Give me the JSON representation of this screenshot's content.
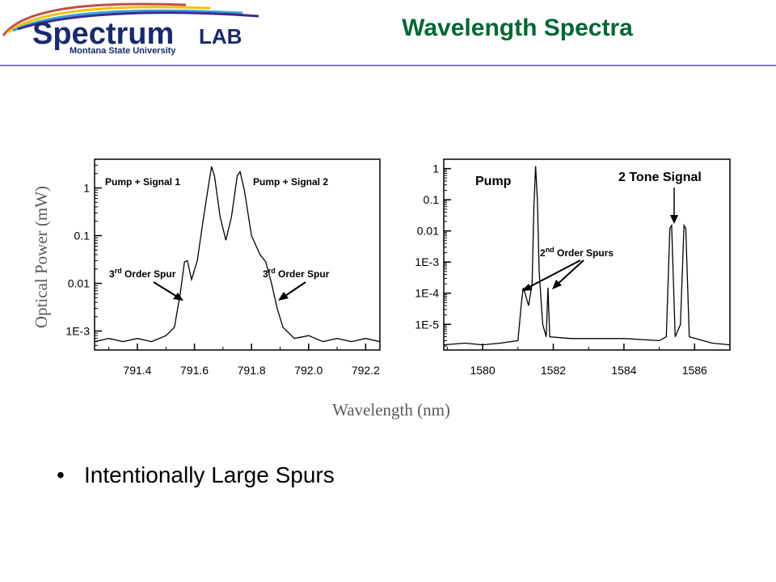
{
  "slide": {
    "title": "Wavelength Spectra",
    "bullets": [
      "Intentionally Large Spurs"
    ]
  },
  "logo": {
    "name_part1": "Spectrum",
    "name_part2": "LAB",
    "subtitle": "Montana State University",
    "colors": {
      "text": "#1a2a6c",
      "swoosh": [
        "#c0504d",
        "#f2c200",
        "#3aa0d8",
        "#3d2b8f"
      ]
    }
  },
  "colors": {
    "title": "#006633",
    "rule": "#8c7ab8",
    "trace": "#000000"
  },
  "shared_axes": {
    "ylabel": "Optical Power (mW)",
    "xlabel": "Wavelength (nm)"
  },
  "chart_data": [
    {
      "type": "line",
      "y_scale": "log",
      "xlim": [
        791.25,
        792.25
      ],
      "ylim": [
        0.0004,
        4
      ],
      "x_ticks": [
        791.4,
        791.6,
        791.8,
        792.0,
        792.2
      ],
      "x_tick_labels": [
        "791.4",
        "791.6",
        "791.8",
        "792.0",
        "792.2"
      ],
      "y_ticks": [
        0.001,
        0.01,
        0.1,
        1
      ],
      "y_tick_labels": [
        "1E-3",
        "0.01",
        "0.1",
        "1"
      ],
      "series": [
        {
          "points": [
            [
              791.25,
              0.0006
            ],
            [
              791.3,
              0.0007
            ],
            [
              791.35,
              0.0006
            ],
            [
              791.4,
              0.0007
            ],
            [
              791.45,
              0.0006
            ],
            [
              791.5,
              0.0008
            ],
            [
              791.53,
              0.0012
            ],
            [
              791.55,
              0.006
            ],
            [
              791.565,
              0.028
            ],
            [
              791.575,
              0.03
            ],
            [
              791.59,
              0.012
            ],
            [
              791.61,
              0.03
            ],
            [
              791.63,
              0.2
            ],
            [
              791.65,
              1.2
            ],
            [
              791.66,
              2.8
            ],
            [
              791.67,
              1.8
            ],
            [
              791.69,
              0.25
            ],
            [
              791.71,
              0.08
            ],
            [
              791.73,
              0.25
            ],
            [
              791.75,
              1.8
            ],
            [
              791.76,
              2.2
            ],
            [
              791.775,
              0.9
            ],
            [
              791.8,
              0.1
            ],
            [
              791.83,
              0.04
            ],
            [
              791.85,
              0.028
            ],
            [
              791.87,
              0.01
            ],
            [
              791.89,
              0.003
            ],
            [
              791.91,
              0.0012
            ],
            [
              791.95,
              0.0007
            ],
            [
              792.0,
              0.0008
            ],
            [
              792.05,
              0.0006
            ],
            [
              792.1,
              0.0007
            ],
            [
              792.15,
              0.0006
            ],
            [
              792.2,
              0.0007
            ],
            [
              792.25,
              0.0006
            ]
          ]
        }
      ],
      "annotations": [
        {
          "text": "Pump + Signal 1"
        },
        {
          "text": "Pump + Signal 2"
        },
        {
          "text_main": "3",
          "text_sup": "rd",
          "text_rest": " Order Spur"
        },
        {
          "text_main": "3",
          "text_sup": "rd",
          "text_rest": " Order Spur"
        }
      ]
    },
    {
      "type": "line",
      "y_scale": "log",
      "xlim": [
        1578.9,
        1587.0
      ],
      "ylim": [
        1.5e-06,
        2
      ],
      "x_ticks": [
        1580,
        1582,
        1584,
        1586
      ],
      "x_tick_labels": [
        "1580",
        "1582",
        "1584",
        "1586"
      ],
      "y_ticks": [
        1e-05,
        0.0001,
        0.001,
        0.01,
        0.1,
        1
      ],
      "y_tick_labels": [
        "1E-5",
        "1E-4",
        "1E-3",
        "0.01",
        "0.1",
        "1"
      ],
      "series": [
        {
          "points": [
            [
              1578.9,
              2.2e-06
            ],
            [
              1579.5,
              2.5e-06
            ],
            [
              1580.0,
              2.2e-06
            ],
            [
              1580.5,
              2.5e-06
            ],
            [
              1581.0,
              3e-06
            ],
            [
              1581.1,
              5e-05
            ],
            [
              1581.15,
              0.00015
            ],
            [
              1581.2,
              0.0001
            ],
            [
              1581.3,
              4e-05
            ],
            [
              1581.4,
              0.0002
            ],
            [
              1581.45,
              0.05
            ],
            [
              1581.5,
              1.2
            ],
            [
              1581.55,
              0.1
            ],
            [
              1581.6,
              0.0005
            ],
            [
              1581.7,
              1e-05
            ],
            [
              1581.8,
              4e-06
            ],
            [
              1581.85,
              0.00015
            ],
            [
              1581.9,
              4e-06
            ],
            [
              1582.5,
              3.5e-06
            ],
            [
              1583.0,
              3.5e-06
            ],
            [
              1584.0,
              3.5e-06
            ],
            [
              1585.0,
              3e-06
            ],
            [
              1585.2,
              4e-06
            ],
            [
              1585.3,
              0.012
            ],
            [
              1585.35,
              0.015
            ],
            [
              1585.45,
              4e-06
            ],
            [
              1585.6,
              1e-05
            ],
            [
              1585.7,
              0.015
            ],
            [
              1585.75,
              0.012
            ],
            [
              1585.85,
              4e-06
            ],
            [
              1586.5,
              2.5e-06
            ],
            [
              1587.0,
              2.2e-06
            ]
          ]
        }
      ],
      "annotations": [
        {
          "text": "Pump"
        },
        {
          "text": "2 Tone Signal"
        },
        {
          "text_main": "2",
          "text_sup": "nd",
          "text_rest": " Order Spurs"
        }
      ]
    }
  ]
}
